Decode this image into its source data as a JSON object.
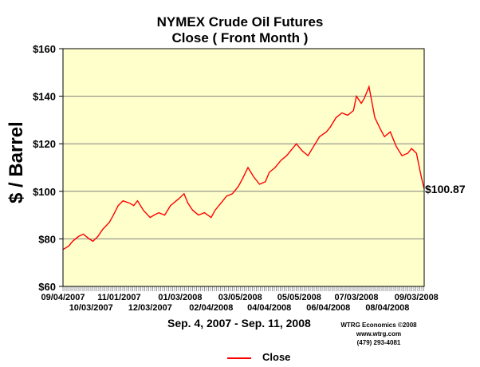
{
  "chart_data": {
    "type": "line",
    "title": "NYMEX Crude Oil Futures",
    "subtitle": "Close ( Front Month )",
    "ylabel": "$ / Barrel",
    "xlabel": "Sep. 4, 2007 - Sep. 11, 2008",
    "ylim": [
      60,
      160
    ],
    "y_ticks": [
      "$60",
      "$80",
      "$100",
      "$120",
      "$140",
      "$160"
    ],
    "y_tick_values": [
      60,
      80,
      100,
      120,
      140,
      160
    ],
    "x_range": [
      "2007-09-04",
      "2008-09-11"
    ],
    "x_ticks_top": [
      "09/04/2007",
      "11/01/2007",
      "01/03/2008",
      "03/05/2008",
      "05/05/2008",
      "07/03/2008",
      "09/03/2008"
    ],
    "x_ticks_top_dates": [
      "2007-09-04",
      "2007-11-01",
      "2008-01-03",
      "2008-03-05",
      "2008-05-05",
      "2008-07-03",
      "2008-09-03"
    ],
    "x_ticks_bottom": [
      "10/03/2007",
      "12/03/2007",
      "02/04/2008",
      "04/04/2008",
      "06/04/2008",
      "08/04/2008"
    ],
    "x_ticks_bottom_dates": [
      "2007-10-03",
      "2007-12-03",
      "2008-02-04",
      "2008-04-04",
      "2008-06-04",
      "2008-08-04"
    ],
    "grid": true,
    "legend_position": "bottom-center",
    "last_value_label": "$100.87",
    "colors": {
      "plot_bg": "#ffffcc",
      "line": "#ff0000",
      "grid": "#808080"
    },
    "series": [
      {
        "name": "Close",
        "x": [
          "2007-09-04",
          "2007-09-10",
          "2007-09-14",
          "2007-09-20",
          "2007-09-25",
          "2007-10-01",
          "2007-10-05",
          "2007-10-10",
          "2007-10-15",
          "2007-10-22",
          "2007-10-26",
          "2007-10-31",
          "2007-11-05",
          "2007-11-12",
          "2007-11-16",
          "2007-11-20",
          "2007-11-26",
          "2007-12-03",
          "2007-12-07",
          "2007-12-12",
          "2007-12-18",
          "2007-12-24",
          "2008-01-02",
          "2008-01-07",
          "2008-01-11",
          "2008-01-16",
          "2008-01-22",
          "2008-01-28",
          "2008-02-04",
          "2008-02-08",
          "2008-02-14",
          "2008-02-20",
          "2008-02-26",
          "2008-03-03",
          "2008-03-07",
          "2008-03-13",
          "2008-03-19",
          "2008-03-25",
          "2008-03-31",
          "2008-04-04",
          "2008-04-10",
          "2008-04-16",
          "2008-04-22",
          "2008-04-28",
          "2008-05-02",
          "2008-05-08",
          "2008-05-14",
          "2008-05-20",
          "2008-05-26",
          "2008-06-02",
          "2008-06-06",
          "2008-06-12",
          "2008-06-18",
          "2008-06-24",
          "2008-06-30",
          "2008-07-03",
          "2008-07-08",
          "2008-07-11",
          "2008-07-16",
          "2008-07-22",
          "2008-07-28",
          "2008-08-01",
          "2008-08-07",
          "2008-08-13",
          "2008-08-19",
          "2008-08-25",
          "2008-08-29",
          "2008-09-03",
          "2008-09-08",
          "2008-09-11"
        ],
        "values": [
          75.5,
          77,
          79,
          81,
          82,
          80,
          79,
          81,
          84,
          87,
          90,
          94,
          96,
          95,
          94,
          96,
          92,
          89,
          90,
          91,
          90,
          94,
          97,
          99,
          95,
          92,
          90,
          91,
          89,
          92,
          95,
          98,
          99,
          102,
          105,
          110,
          106,
          103,
          104,
          108,
          110,
          113,
          115,
          118,
          120,
          117,
          115,
          119,
          123,
          125,
          127,
          131,
          133,
          132,
          134,
          140,
          137,
          139,
          144,
          131,
          126,
          123,
          125,
          119,
          115,
          116,
          118,
          116,
          106,
          101
        ]
      }
    ]
  }
}
